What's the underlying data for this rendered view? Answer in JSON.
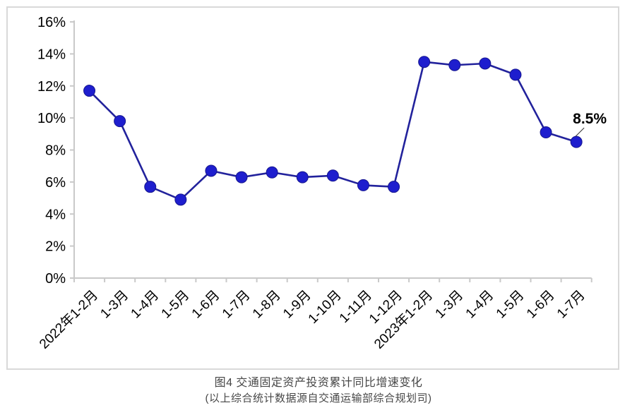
{
  "chart_data": {
    "type": "line",
    "title": "图4  交通固定资产投资累计同比增速变化",
    "subtitle": "(以上综合统计数据源自交通运输部综合规划司)",
    "categories": [
      "2022年1-2月",
      "1-3月",
      "1-4月",
      "1-5月",
      "1-6月",
      "1-7月",
      "1-8月",
      "1-9月",
      "1-10月",
      "1-11月",
      "1-12月",
      "2023年1-2月",
      "1-3月",
      "1-4月",
      "1-5月",
      "1-6月",
      "1-7月"
    ],
    "series": [
      {
        "name": "交通固定资产投资累计同比增速",
        "values": [
          11.7,
          9.8,
          5.7,
          4.9,
          6.7,
          6.3,
          6.6,
          6.3,
          6.4,
          5.8,
          5.7,
          13.5,
          13.3,
          13.4,
          12.7,
          9.1,
          8.5
        ]
      }
    ],
    "ylim": [
      0,
      16
    ],
    "ytick_step": 2,
    "ytick_labels": [
      "0%",
      "2%",
      "4%",
      "6%",
      "8%",
      "10%",
      "12%",
      "14%",
      "16%"
    ],
    "xlabel": "",
    "ylabel": "",
    "grid": false,
    "legend_position": "none",
    "x_label_rotation_deg": -45,
    "annotation": {
      "text": "8.5%",
      "point_index": 16
    },
    "colors": {
      "line": "#22229c",
      "marker_fill": "#1e1ece",
      "marker_stroke": "#16168f",
      "axis": "#c9c9c9",
      "tick_label": "#000000",
      "annotation_text": "#000000",
      "frame_border": "#d9d9d9",
      "caption_text": "#474747",
      "background": "#ffffff"
    }
  },
  "caption": {
    "line1": "图4  交通固定资产投资累计同比增速变化",
    "line2": "(以上综合统计数据源自交通运输部综合规划司)"
  }
}
